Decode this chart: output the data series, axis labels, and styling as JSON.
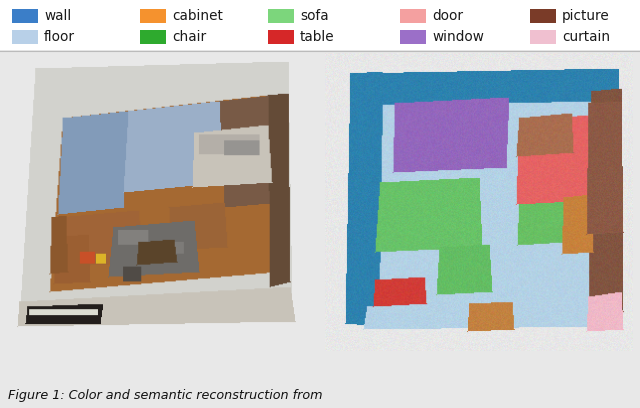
{
  "legend_items": [
    {
      "label": "wall",
      "color": "#3B7EC8"
    },
    {
      "label": "floor",
      "color": "#B8D0E8"
    },
    {
      "label": "cabinet",
      "color": "#F5922E"
    },
    {
      "label": "chair",
      "color": "#2EAA2E"
    },
    {
      "label": "sofa",
      "color": "#7CD67C"
    },
    {
      "label": "table",
      "color": "#D62728"
    },
    {
      "label": "door",
      "color": "#F4A0A0"
    },
    {
      "label": "window",
      "color": "#9B6FC8"
    },
    {
      "label": "picture",
      "color": "#7A3B28"
    },
    {
      "label": "curtain",
      "color": "#F0C0D0"
    }
  ],
  "figure_caption": "Figure 1: Color and semantic reconstruction from",
  "background_color": "#E8E8E8",
  "fig_width": 6.4,
  "fig_height": 4.08,
  "dpi": 100
}
